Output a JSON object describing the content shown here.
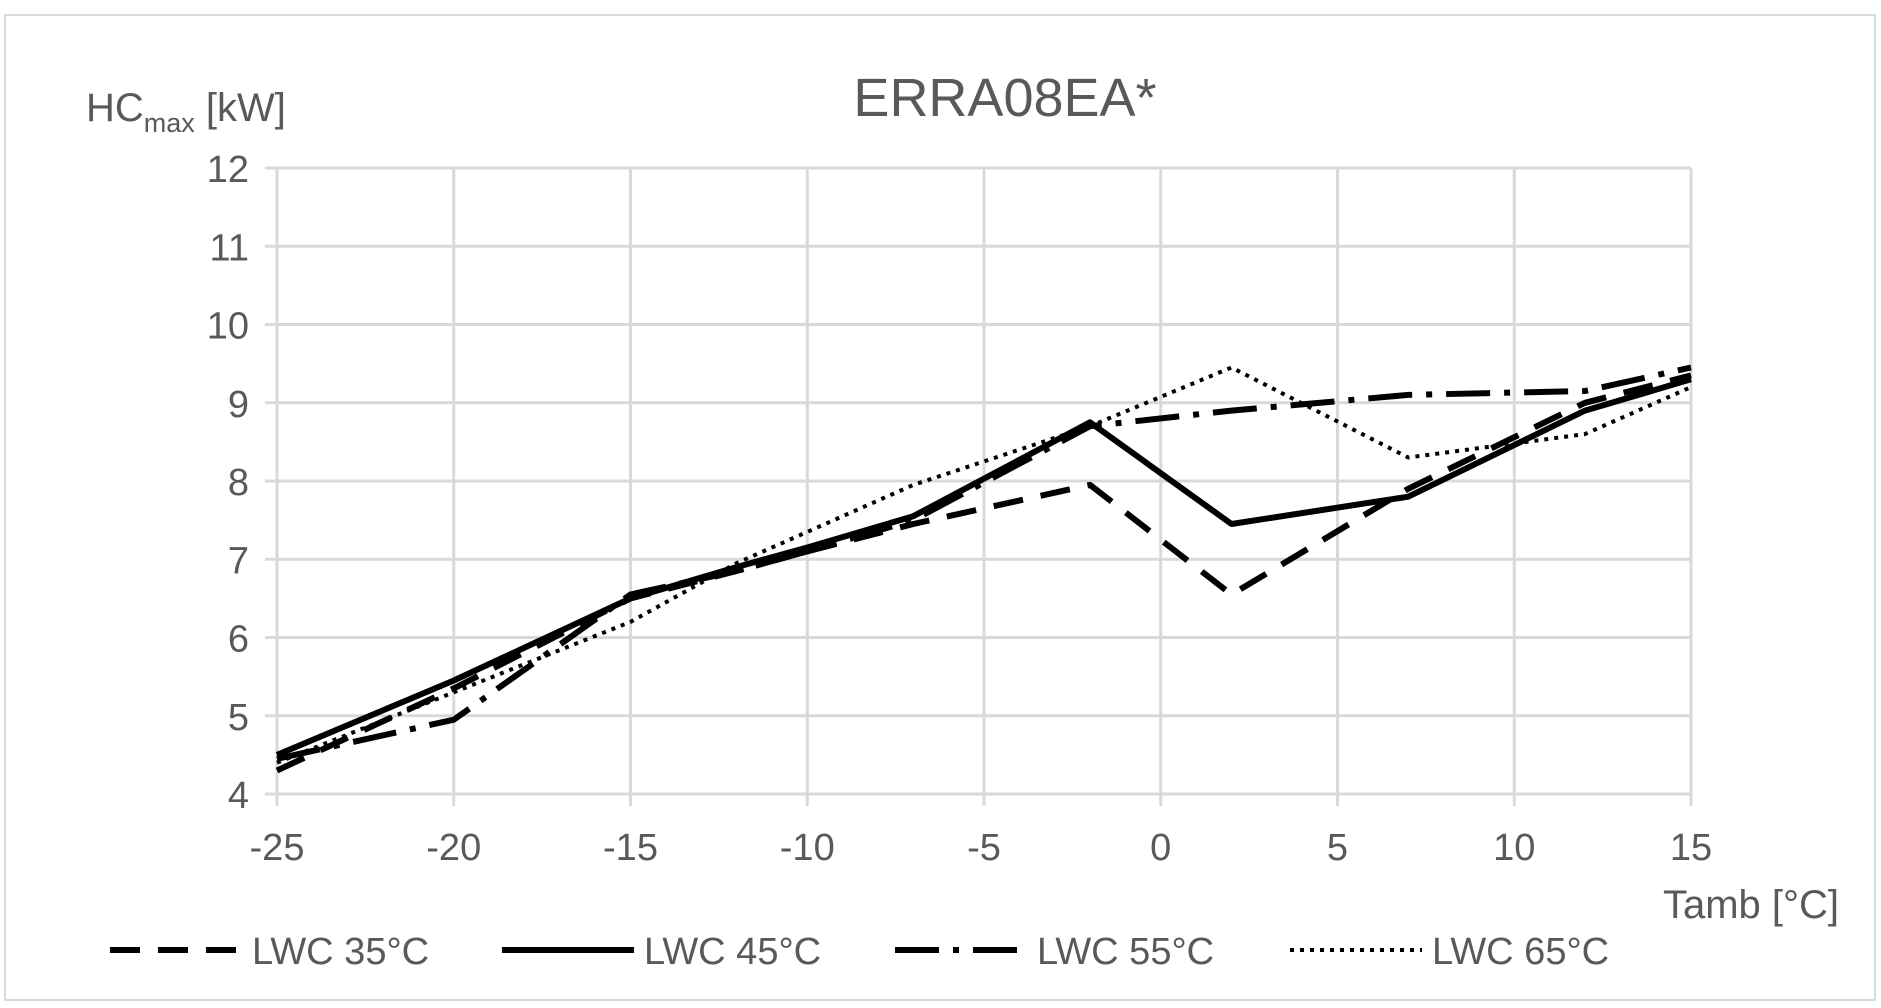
{
  "chart_data": {
    "type": "line",
    "title": "ERRA08EA*",
    "ylabel": {
      "main": "HC",
      "subscript": "max",
      "unit": " [kW]"
    },
    "xlabel": "Tamb [°C]",
    "xlim": [
      -25,
      15
    ],
    "ylim": [
      4,
      12
    ],
    "xticks": [
      -25,
      -20,
      -15,
      -10,
      -5,
      0,
      5,
      10,
      15
    ],
    "yticks": [
      4,
      5,
      6,
      7,
      8,
      9,
      10,
      11,
      12
    ],
    "grid": true,
    "legend_position": "bottom",
    "colors": {
      "series": "#000000",
      "grid": "#d9d9d9",
      "text": "#595959",
      "frame": "#d9d9d9"
    },
    "series": [
      {
        "name": "LWC 35°C",
        "dash": "dashed",
        "x": [
          -25,
          -20,
          -15,
          -12,
          -10,
          -7,
          -2,
          2,
          7,
          12,
          15
        ],
        "y": [
          4.3,
          5.35,
          6.5,
          6.85,
          7.1,
          7.45,
          7.95,
          6.55,
          7.9,
          9.0,
          9.35
        ]
      },
      {
        "name": "LWC 45°C",
        "dash": "solid",
        "x": [
          -25,
          -20,
          -15,
          -12,
          -10,
          -7,
          -2,
          2,
          7,
          12,
          15
        ],
        "y": [
          4.5,
          5.45,
          6.5,
          6.9,
          7.15,
          7.55,
          8.75,
          7.45,
          7.8,
          8.9,
          9.3
        ]
      },
      {
        "name": "LWC 55°C",
        "dash": "dashdot",
        "x": [
          -25,
          -20,
          -15,
          -12,
          -10,
          -7,
          -2,
          2,
          7,
          12,
          15
        ],
        "y": [
          4.45,
          4.95,
          6.55,
          6.85,
          7.1,
          7.5,
          8.7,
          8.9,
          9.1,
          9.15,
          9.45
        ]
      },
      {
        "name": "LWC 65°C",
        "dash": "dotted",
        "x": [
          -25,
          -20,
          -15,
          -12,
          -10,
          -7,
          -2,
          2,
          7,
          12,
          15
        ],
        "y": [
          4.4,
          5.3,
          6.2,
          6.95,
          7.35,
          7.95,
          8.7,
          9.45,
          8.3,
          8.6,
          9.2
        ]
      }
    ]
  }
}
